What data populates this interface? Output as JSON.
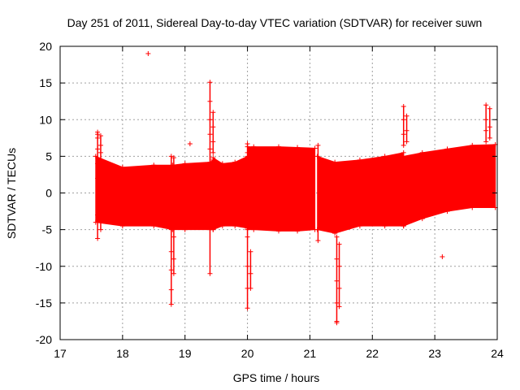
{
  "chart_data": {
    "type": "scatter",
    "title": "Day 251 of 2011, Sidereal Day-to-day VTEC variation (SDTVAR) for receiver suwn",
    "xlabel": "GPS time / hours",
    "ylabel": "SDTVAR / TECUs",
    "xlim": [
      17,
      24
    ],
    "ylim": [
      -20,
      20
    ],
    "xticks": [
      17,
      18,
      19,
      20,
      21,
      22,
      23,
      24
    ],
    "yticks": [
      -20,
      -15,
      -10,
      -5,
      0,
      5,
      10,
      15,
      20
    ],
    "grid": true,
    "marker": "+",
    "series_color": "#ff0000",
    "band_segments": [
      {
        "x": [
          17.57,
          18.0,
          18.5,
          18.8,
          19.0,
          19.4,
          19.45
        ],
        "upper": [
          5.0,
          3.5,
          3.8,
          3.8,
          4.0,
          4.2,
          4.5
        ],
        "lower": [
          -4.0,
          -4.5,
          -4.5,
          -5.0,
          -5.0,
          -5.0,
          -5.0
        ]
      },
      {
        "x": [
          19.45,
          19.6,
          19.8,
          20.0
        ],
        "upper": [
          4.8,
          4.0,
          4.2,
          5.0
        ],
        "lower": [
          -5.0,
          -4.5,
          -4.5,
          -4.8
        ]
      },
      {
        "x": [
          20.0,
          20.1,
          20.5,
          20.8,
          21.08
        ],
        "upper": [
          6.3,
          6.3,
          6.3,
          6.2,
          6.1
        ],
        "lower": [
          -5.0,
          -5.0,
          -5.2,
          -5.2,
          -5.0
        ]
      },
      {
        "x": [
          21.12,
          21.4,
          21.8,
          22.2,
          22.5
        ],
        "upper": [
          5.0,
          4.2,
          4.5,
          5.0,
          5.5
        ],
        "lower": [
          -5.0,
          -5.5,
          -4.5,
          -4.5,
          -4.5
        ]
      },
      {
        "x": [
          22.5,
          22.8,
          23.2,
          23.6,
          23.97
        ],
        "upper": [
          5.0,
          5.5,
          6.0,
          6.5,
          6.6
        ],
        "lower": [
          -4.5,
          -3.5,
          -2.5,
          -2.0,
          -2.0
        ]
      }
    ],
    "spikes": [
      {
        "x": 17.6,
        "values": [
          2.0,
          4.0,
          6.0,
          8.0,
          8.3,
          7.5,
          -3.0,
          -6.2
        ]
      },
      {
        "x": 17.65,
        "values": [
          7.8,
          6.5,
          5.5,
          -5.0
        ]
      },
      {
        "x": 18.41,
        "values": [
          19.0
        ]
      },
      {
        "x": 18.78,
        "values": [
          5.0,
          -5.0,
          -8.0,
          -10.5,
          -13.2,
          -15.2
        ]
      },
      {
        "x": 18.82,
        "values": [
          4.8,
          -6.0,
          -9.0,
          -11.0
        ]
      },
      {
        "x": 19.08,
        "values": [
          6.7
        ]
      },
      {
        "x": 19.4,
        "values": [
          15.1,
          12.5,
          10.0,
          8.0,
          6.0,
          -11.0
        ]
      },
      {
        "x": 19.45,
        "values": [
          11.0,
          9.0,
          7.0,
          5.5
        ]
      },
      {
        "x": 20.0,
        "values": [
          6.7,
          5.5,
          -6.0,
          -10.0,
          -13.0,
          -15.7
        ]
      },
      {
        "x": 20.05,
        "values": [
          -8.0,
          -11.0,
          -13.0
        ]
      },
      {
        "x": 21.13,
        "values": [
          6.5,
          -6.5
        ]
      },
      {
        "x": 21.43,
        "values": [
          -6.0,
          -9.0,
          -12.0,
          -15.0,
          -17.5,
          -17.7
        ]
      },
      {
        "x": 21.47,
        "values": [
          -7.0,
          -10.0,
          -13.0,
          -15.5
        ]
      },
      {
        "x": 22.5,
        "values": [
          11.8,
          10.0,
          8.0,
          6.5
        ]
      },
      {
        "x": 22.55,
        "values": [
          10.5,
          8.5,
          7.0
        ]
      },
      {
        "x": 23.12,
        "values": [
          -8.7
        ]
      },
      {
        "x": 23.82,
        "values": [
          12.0,
          10.0,
          8.5,
          7.0
        ]
      },
      {
        "x": 23.88,
        "values": [
          11.5,
          9.0,
          7.5
        ]
      }
    ]
  }
}
